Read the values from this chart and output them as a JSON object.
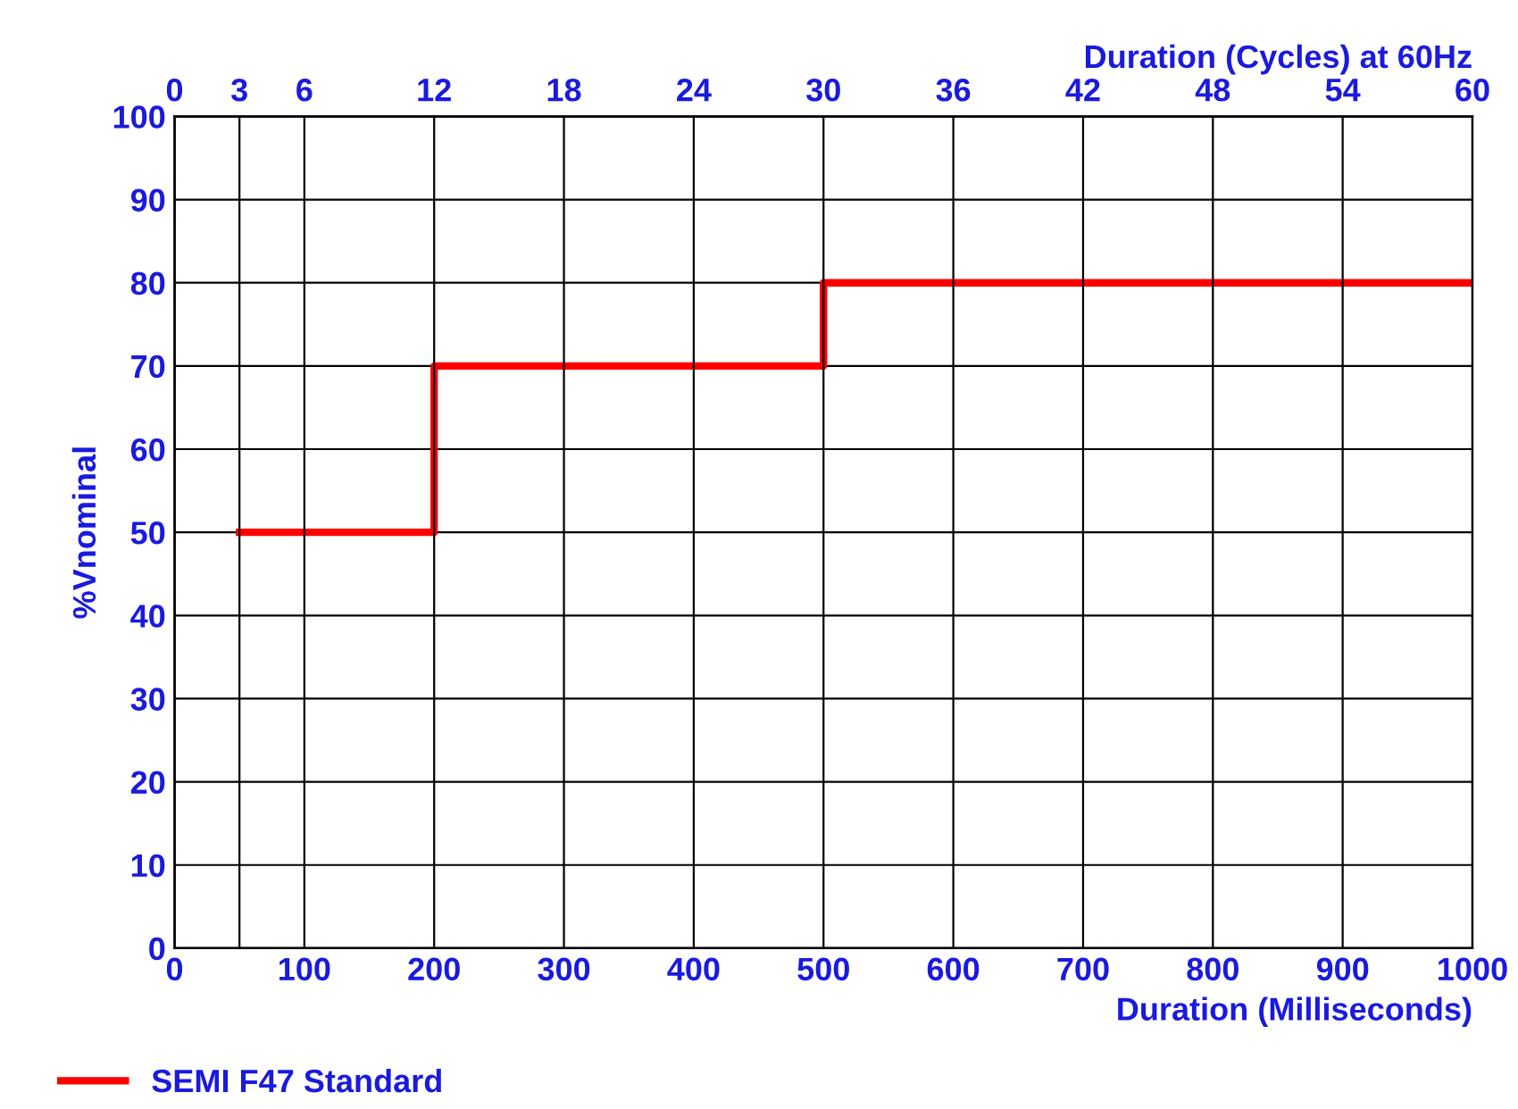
{
  "chart_data": {
    "type": "step",
    "xlabel": "Duration (Milliseconds)",
    "ylabel": "%Vnominal",
    "x2label": "Duration (Cycles) at 60Hz",
    "x": [
      50,
      200,
      500,
      1000
    ],
    "series": [
      {
        "name": "SEMI F47 Standard",
        "color": "#ff0000",
        "values": [
          50,
          70,
          80,
          80
        ]
      }
    ],
    "xlim": [
      0,
      1000
    ],
    "xticks": [
      0,
      100,
      200,
      300,
      400,
      500,
      600,
      700,
      800,
      900,
      1000
    ],
    "ylim": [
      0,
      100
    ],
    "yticks": [
      0,
      10,
      20,
      30,
      40,
      50,
      60,
      70,
      80,
      90,
      100
    ],
    "x2lim": [
      0,
      60
    ],
    "x2ticks": [
      0,
      3,
      6,
      12,
      18,
      24,
      30,
      36,
      42,
      48,
      54,
      60
    ],
    "grid": true,
    "legend": "bottom left",
    "line_style": "solid",
    "marker": "none"
  }
}
